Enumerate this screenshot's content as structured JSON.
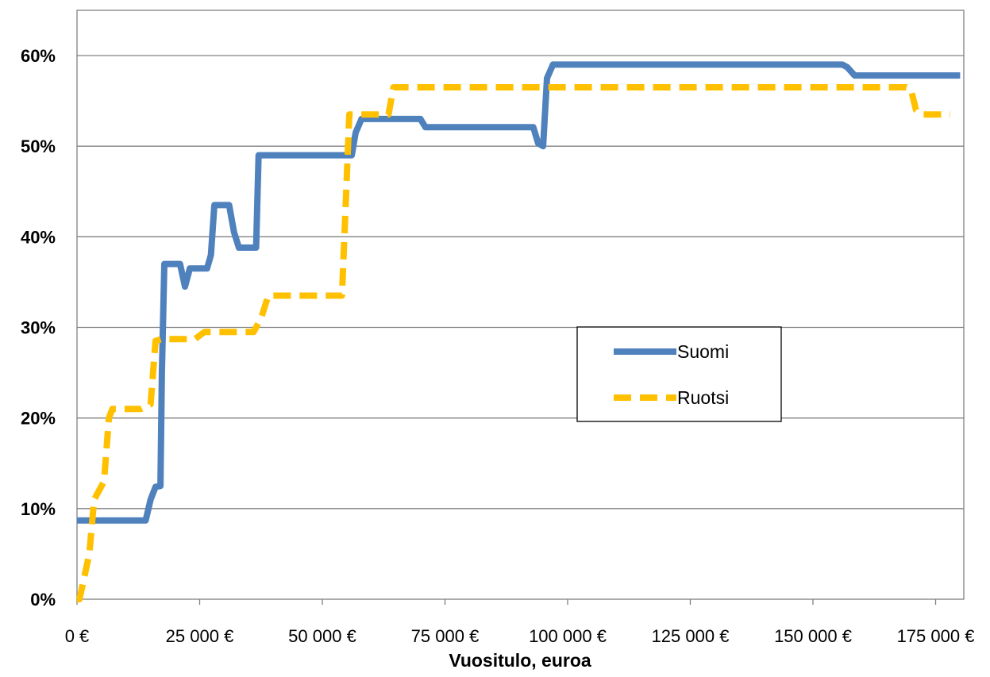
{
  "chart_data": {
    "type": "line",
    "title": "",
    "xlabel": "Vuositulo, euroa",
    "ylabel": "",
    "xlim": [
      0,
      180000
    ],
    "ylim": [
      0,
      0.65
    ],
    "yticks": [
      {
        "value": 0,
        "label": "0%"
      },
      {
        "value": 0.1,
        "label": "10%"
      },
      {
        "value": 0.2,
        "label": "20%"
      },
      {
        "value": 0.3,
        "label": "30%"
      },
      {
        "value": 0.4,
        "label": "40%"
      },
      {
        "value": 0.5,
        "label": "50%"
      },
      {
        "value": 0.6,
        "label": "60%"
      }
    ],
    "xticks": [
      {
        "value": 0,
        "label": "0 €"
      },
      {
        "value": 25000,
        "label": "25 000 €"
      },
      {
        "value": 50000,
        "label": "50 000 €"
      },
      {
        "value": 75000,
        "label": "75 000 €"
      },
      {
        "value": 100000,
        "label": "100 000 €"
      },
      {
        "value": 125000,
        "label": "125 000 €"
      },
      {
        "value": 150000,
        "label": "150 000 €"
      },
      {
        "value": 175000,
        "label": "175 000 €"
      }
    ],
    "grid": true,
    "legend_position": "center-right",
    "series": [
      {
        "name": "Suomi",
        "color": "#4f81bd",
        "style": "solid",
        "points": [
          [
            0,
            0.087
          ],
          [
            14000,
            0.087
          ],
          [
            15000,
            0.11
          ],
          [
            16000,
            0.124
          ],
          [
            17000,
            0.125
          ],
          [
            17300,
            0.25
          ],
          [
            17800,
            0.37
          ],
          [
            21000,
            0.37
          ],
          [
            22000,
            0.345
          ],
          [
            23000,
            0.365
          ],
          [
            26500,
            0.365
          ],
          [
            27300,
            0.38
          ],
          [
            28000,
            0.435
          ],
          [
            31000,
            0.435
          ],
          [
            32000,
            0.405
          ],
          [
            33000,
            0.388
          ],
          [
            36500,
            0.388
          ],
          [
            37000,
            0.49
          ],
          [
            56000,
            0.49
          ],
          [
            56800,
            0.515
          ],
          [
            58000,
            0.53
          ],
          [
            70000,
            0.53
          ],
          [
            71000,
            0.521
          ],
          [
            93000,
            0.521
          ],
          [
            94000,
            0.503
          ],
          [
            95000,
            0.5
          ],
          [
            95800,
            0.575
          ],
          [
            97000,
            0.59
          ],
          [
            156000,
            0.59
          ],
          [
            157000,
            0.587
          ],
          [
            158500,
            0.578
          ],
          [
            180000,
            0.578
          ]
        ]
      },
      {
        "name": "Ruotsi",
        "color": "#ffc000",
        "style": "dashed",
        "points": [
          [
            0,
            0
          ],
          [
            500,
            0
          ],
          [
            2500,
            0.05
          ],
          [
            3500,
            0.11
          ],
          [
            5500,
            0.13
          ],
          [
            6500,
            0.2
          ],
          [
            7200,
            0.21
          ],
          [
            13000,
            0.21
          ],
          [
            15000,
            0.215
          ],
          [
            16000,
            0.285
          ],
          [
            17200,
            0.287
          ],
          [
            24000,
            0.287
          ],
          [
            26000,
            0.295
          ],
          [
            36000,
            0.295
          ],
          [
            37500,
            0.31
          ],
          [
            39000,
            0.335
          ],
          [
            54000,
            0.335
          ],
          [
            54500,
            0.4
          ],
          [
            55500,
            0.535
          ],
          [
            63500,
            0.535
          ],
          [
            64500,
            0.565
          ],
          [
            169000,
            0.565
          ],
          [
            170000,
            0.562
          ],
          [
            171000,
            0.54
          ],
          [
            172500,
            0.535
          ],
          [
            178000,
            0.535
          ]
        ]
      }
    ]
  }
}
